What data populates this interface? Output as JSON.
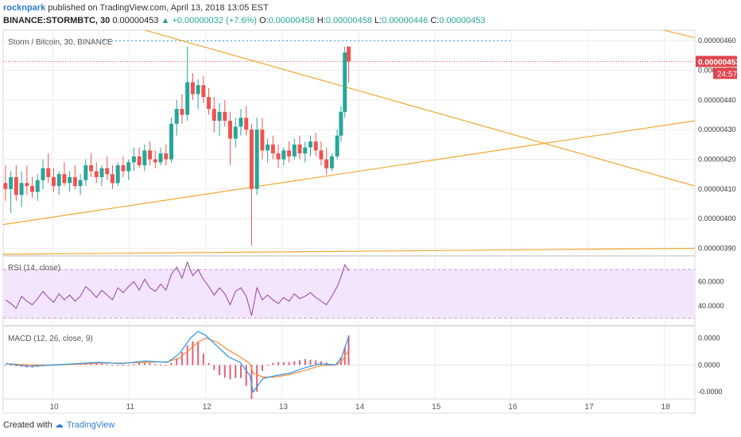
{
  "header": {
    "author": "rocknpark",
    "published": "published on TradingView.com, April 13, 2018 13:05 EST"
  },
  "ohlc": {
    "symbol": "BINANCE:STORMBTC, 30",
    "last": "0.00000453",
    "change": "▲ +0.00000032 (+7.6%)",
    "o_label": "O:",
    "o": "0.00000458",
    "h_label": "H:",
    "h": "0.00000458",
    "l_label": "L:",
    "l": "0.00000446",
    "c_label": "C:",
    "c": "0.00000453"
  },
  "price_panel": {
    "legend": "Storm / Bitcoin, 30, BINANCE",
    "price_ticks": [
      "0.00000460",
      "0.00000450",
      "0.00000440",
      "0.00000430",
      "0.00000420",
      "0.00000410",
      "0.00000400",
      "0.00000390"
    ],
    "last_price_label": "0.00000453",
    "countdown_label": "24:57"
  },
  "rsi_panel": {
    "legend": "RSI (14, close)",
    "ticks": [
      "60.0000",
      "40.0000"
    ]
  },
  "macd_panel": {
    "legend": "MACD (12, 26, close, 9)",
    "ticks": [
      "0.0000",
      "0.0000",
      "-0.0000"
    ]
  },
  "time_axis": [
    "10",
    "11",
    "12",
    "13",
    "14",
    "15",
    "16",
    "17",
    "18"
  ],
  "footer": {
    "created_with": "Created with",
    "brand": "TradingView"
  },
  "colors": {
    "up": "#26a69a",
    "down": "#ef5350",
    "trendline": "#f0a830",
    "rsi_line": "#9c3fa8",
    "rsi_band": "#f3e5fb",
    "macd_line": "#2196f3",
    "signal_line": "#ff8a30",
    "hist": "#e0607a",
    "price_label_bg": "#e0454d"
  },
  "chart_data": {
    "type": "candlestick",
    "price_range": [
      3.88e-06,
      4.63e-06
    ],
    "x_range": [
      9.35,
      18.4
    ],
    "candles": [
      [
        9.38,
        4.12e-06,
        4.18e-06,
        4.06e-06,
        4.1e-06
      ],
      [
        9.45,
        4.1e-06,
        4.16e-06,
        4.02e-06,
        4.14e-06
      ],
      [
        9.52,
        4.14e-06,
        4.18e-06,
        4.06e-06,
        4.08e-06
      ],
      [
        9.59,
        4.08e-06,
        4.16e-06,
        4.04e-06,
        4.12e-06
      ],
      [
        9.66,
        4.12e-06,
        4.18e-06,
        4.08e-06,
        4.11e-06
      ],
      [
        9.73,
        4.11e-06,
        4.14e-06,
        4.07e-06,
        4.09e-06
      ],
      [
        9.8,
        4.09e-06,
        4.15e-06,
        4.06e-06,
        4.13e-06
      ],
      [
        9.87,
        4.13e-06,
        4.2e-06,
        4.1e-06,
        4.17e-06
      ],
      [
        9.94,
        4.17e-06,
        4.22e-06,
        4.12e-06,
        4.14e-06
      ],
      [
        10.01,
        4.14e-06,
        4.17e-06,
        4.09e-06,
        4.11e-06
      ],
      [
        10.08,
        4.11e-06,
        4.16e-06,
        4.08e-06,
        4.15e-06
      ],
      [
        10.15,
        4.15e-06,
        4.19e-06,
        4.11e-06,
        4.12e-06
      ],
      [
        10.22,
        4.12e-06,
        4.16e-06,
        4.09e-06,
        4.14e-06
      ],
      [
        10.29,
        4.14e-06,
        4.18e-06,
        4.1e-06,
        4.11e-06
      ],
      [
        10.36,
        4.11e-06,
        4.15e-06,
        4.08e-06,
        4.13e-06
      ],
      [
        10.43,
        4.13e-06,
        4.2e-06,
        4.11e-06,
        4.18e-06
      ],
      [
        10.5,
        4.18e-06,
        4.22e-06,
        4.14e-06,
        4.16e-06
      ],
      [
        10.57,
        4.16e-06,
        4.19e-06,
        4.12e-06,
        4.14e-06
      ],
      [
        10.64,
        4.14e-06,
        4.18e-06,
        4.11e-06,
        4.17e-06
      ],
      [
        10.71,
        4.17e-06,
        4.21e-06,
        4.13e-06,
        4.15e-06
      ],
      [
        10.78,
        4.15e-06,
        4.18e-06,
        4.1e-06,
        4.12e-06
      ],
      [
        10.85,
        4.12e-06,
        4.19e-06,
        4.11e-06,
        4.18e-06
      ],
      [
        10.92,
        4.18e-06,
        4.21e-06,
        4.14e-06,
        4.16e-06
      ],
      [
        10.99,
        4.16e-06,
        4.2e-06,
        4.13e-06,
        4.19e-06
      ],
      [
        11.06,
        4.19e-06,
        4.24e-06,
        4.16e-06,
        4.21e-06
      ],
      [
        11.13,
        4.21e-06,
        4.24e-06,
        4.17e-06,
        4.18e-06
      ],
      [
        11.2,
        4.18e-06,
        4.25e-06,
        4.16e-06,
        4.23e-06
      ],
      [
        11.27,
        4.23e-06,
        4.26e-06,
        4.18e-06,
        4.2e-06
      ],
      [
        11.34,
        4.2e-06,
        4.23e-06,
        4.17e-06,
        4.19e-06
      ],
      [
        11.41,
        4.19e-06,
        4.24e-06,
        4.18e-06,
        4.22e-06
      ],
      [
        11.48,
        4.22e-06,
        4.25e-06,
        4.18e-06,
        4.2e-06
      ],
      [
        11.55,
        4.2e-06,
        4.34e-06,
        4.19e-06,
        4.32e-06
      ],
      [
        11.62,
        4.32e-06,
        4.4e-06,
        4.28e-06,
        4.37e-06
      ],
      [
        11.69,
        4.37e-06,
        4.42e-06,
        4.32e-06,
        4.35e-06
      ],
      [
        11.76,
        4.35e-06,
        4.58e-06,
        4.33e-06,
        4.46e-06
      ],
      [
        11.83,
        4.46e-06,
        4.49e-06,
        4.4e-06,
        4.42e-06
      ],
      [
        11.9,
        4.42e-06,
        4.47e-06,
        4.37e-06,
        4.45e-06
      ],
      [
        11.97,
        4.45e-06,
        4.48e-06,
        4.39e-06,
        4.41e-06
      ],
      [
        12.04,
        4.41e-06,
        4.44e-06,
        4.35e-06,
        4.37e-06
      ],
      [
        12.11,
        4.37e-06,
        4.41e-06,
        4.29e-06,
        4.33e-06
      ],
      [
        12.18,
        4.33e-06,
        4.39e-06,
        4.28e-06,
        4.36e-06
      ],
      [
        12.25,
        4.36e-06,
        4.4e-06,
        4.31e-06,
        4.33e-06
      ],
      [
        12.32,
        4.33e-06,
        4.36e-06,
        4.18e-06,
        4.27e-06
      ],
      [
        12.39,
        4.27e-06,
        4.34e-06,
        4.24e-06,
        4.31e-06
      ],
      [
        12.46,
        4.31e-06,
        4.37e-06,
        4.28e-06,
        4.34e-06
      ],
      [
        12.53,
        4.34e-06,
        4.38e-06,
        4.28e-06,
        4.3e-06
      ],
      [
        12.6,
        4.3e-06,
        4.32e-06,
        3.91e-06,
        4.1e-06
      ],
      [
        12.67,
        4.1e-06,
        4.34e-06,
        4.08e-06,
        4.3e-06
      ],
      [
        12.74,
        4.3e-06,
        4.34e-06,
        4.2e-06,
        4.23e-06
      ],
      [
        12.81,
        4.23e-06,
        4.27e-06,
        4.19e-06,
        4.25e-06
      ],
      [
        12.88,
        4.25e-06,
        4.28e-06,
        4.2e-06,
        4.22e-06
      ],
      [
        12.95,
        4.22e-06,
        4.25e-06,
        4.17e-06,
        4.2e-06
      ],
      [
        13.02,
        4.2e-06,
        4.24e-06,
        4.18e-06,
        4.23e-06
      ],
      [
        13.09,
        4.23e-06,
        4.26e-06,
        4.19e-06,
        4.21e-06
      ],
      [
        13.16,
        4.21e-06,
        4.27e-06,
        4.2e-06,
        4.25e-06
      ],
      [
        13.23,
        4.25e-06,
        4.28e-06,
        4.2e-06,
        4.22e-06
      ],
      [
        13.3,
        4.22e-06,
        4.26e-06,
        4.19e-06,
        4.24e-06
      ],
      [
        13.37,
        4.24e-06,
        4.28e-06,
        4.21e-06,
        4.26e-06
      ],
      [
        13.44,
        4.26e-06,
        4.29e-06,
        4.21e-06,
        4.23e-06
      ],
      [
        13.51,
        4.23e-06,
        4.26e-06,
        4.18e-06,
        4.2e-06
      ],
      [
        13.58,
        4.2e-06,
        4.24e-06,
        4.15e-06,
        4.17e-06
      ],
      [
        13.65,
        4.17e-06,
        4.22e-06,
        4.16e-06,
        4.21e-06
      ],
      [
        13.72,
        4.21e-06,
        4.3e-06,
        4.2e-06,
        4.28e-06
      ],
      [
        13.77,
        4.28e-06,
        4.38e-06,
        4.26e-06,
        4.36e-06
      ],
      [
        13.82,
        4.36e-06,
        4.58e-06,
        4.34e-06,
        4.56e-06
      ],
      [
        13.87,
        4.58e-06,
        4.58e-06,
        4.46e-06,
        4.53e-06
      ]
    ],
    "trendlines": [
      {
        "from": [
          9.5,
          4.76e-06
        ],
        "to": [
          18.4,
          4.11e-06
        ]
      },
      {
        "from": [
          9.35,
          3.98e-06
        ],
        "to": [
          18.4,
          4.33e-06
        ]
      },
      {
        "from": [
          17.6,
          4.66e-06
        ],
        "to": [
          18.4,
          4.61e-06
        ]
      },
      {
        "from": [
          9.35,
          3.88e-06
        ],
        "to": [
          18.4,
          3.9e-06
        ]
      }
    ],
    "resistance_level": 4.6e-06,
    "last_price": 4.53e-06,
    "rsi": {
      "range": [
        25,
        80
      ],
      "bands": [
        70,
        30
      ],
      "values": [
        [
          9.38,
          45
        ],
        [
          9.45,
          42
        ],
        [
          9.52,
          38
        ],
        [
          9.59,
          48
        ],
        [
          9.66,
          44
        ],
        [
          9.73,
          41
        ],
        [
          9.8,
          46
        ],
        [
          9.87,
          52
        ],
        [
          9.94,
          47
        ],
        [
          10.01,
          43
        ],
        [
          10.08,
          50
        ],
        [
          10.15,
          45
        ],
        [
          10.22,
          49
        ],
        [
          10.29,
          44
        ],
        [
          10.36,
          48
        ],
        [
          10.43,
          56
        ],
        [
          10.5,
          52
        ],
        [
          10.57,
          47
        ],
        [
          10.64,
          53
        ],
        [
          10.71,
          49
        ],
        [
          10.78,
          45
        ],
        [
          10.85,
          55
        ],
        [
          10.92,
          51
        ],
        [
          10.99,
          56
        ],
        [
          11.06,
          60
        ],
        [
          11.13,
          53
        ],
        [
          11.2,
          62
        ],
        [
          11.27,
          55
        ],
        [
          11.34,
          52
        ],
        [
          11.41,
          58
        ],
        [
          11.48,
          53
        ],
        [
          11.55,
          66
        ],
        [
          11.62,
          72
        ],
        [
          11.69,
          63
        ],
        [
          11.76,
          76
        ],
        [
          11.83,
          65
        ],
        [
          11.9,
          70
        ],
        [
          11.97,
          62
        ],
        [
          12.04,
          56
        ],
        [
          12.11,
          49
        ],
        [
          12.18,
          55
        ],
        [
          12.25,
          50
        ],
        [
          12.32,
          41
        ],
        [
          12.39,
          52
        ],
        [
          12.46,
          55
        ],
        [
          12.53,
          48
        ],
        [
          12.6,
          32
        ],
        [
          12.67,
          55
        ],
        [
          12.74,
          45
        ],
        [
          12.81,
          49
        ],
        [
          12.88,
          45
        ],
        [
          12.95,
          42
        ],
        [
          13.02,
          47
        ],
        [
          13.09,
          44
        ],
        [
          13.16,
          50
        ],
        [
          13.23,
          46
        ],
        [
          13.3,
          48
        ],
        [
          13.37,
          51
        ],
        [
          13.44,
          47
        ],
        [
          13.51,
          44
        ],
        [
          13.58,
          41
        ],
        [
          13.65,
          48
        ],
        [
          13.72,
          56
        ],
        [
          13.77,
          64
        ],
        [
          13.82,
          74
        ],
        [
          13.87,
          69
        ]
      ]
    },
    "macd": {
      "range": [
        -1.2e-08,
        1.4e-08
      ],
      "macd": [
        [
          9.38,
          5e-10
        ],
        [
          9.7,
          -5e-10
        ],
        [
          10.0,
          0.0
        ],
        [
          10.3,
          5e-10
        ],
        [
          10.6,
          1e-09
        ],
        [
          10.9,
          5e-10
        ],
        [
          11.2,
          1.5e-09
        ],
        [
          11.5,
          1e-09
        ],
        [
          11.65,
          4e-09
        ],
        [
          11.8,
          1e-08
        ],
        [
          11.9,
          1.25e-08
        ],
        [
          12.0,
          1.1e-08
        ],
        [
          12.15,
          7e-09
        ],
        [
          12.3,
          3e-09
        ],
        [
          12.45,
          1e-09
        ],
        [
          12.58,
          -4e-09
        ],
        [
          12.62,
          -1e-08
        ],
        [
          12.75,
          -5e-09
        ],
        [
          12.9,
          -4e-09
        ],
        [
          13.1,
          -3e-09
        ],
        [
          13.3,
          -1e-09
        ],
        [
          13.5,
          5e-10
        ],
        [
          13.7,
          0.0
        ],
        [
          13.78,
          3e-09
        ],
        [
          13.87,
          1.05e-08
        ]
      ],
      "signal": [
        [
          9.38,
          5e-10
        ],
        [
          9.7,
          0.0
        ],
        [
          10.0,
          0.0
        ],
        [
          10.3,
          3e-10
        ],
        [
          10.6,
          7e-10
        ],
        [
          10.9,
          7e-10
        ],
        [
          11.2,
          1e-09
        ],
        [
          11.5,
          1.2e-09
        ],
        [
          11.65,
          2.5e-09
        ],
        [
          11.8,
          6e-09
        ],
        [
          11.9,
          8.5e-09
        ],
        [
          12.0,
          1e-08
        ],
        [
          12.15,
          8.5e-09
        ],
        [
          12.3,
          5.5e-09
        ],
        [
          12.45,
          3e-09
        ],
        [
          12.58,
          5e-10
        ],
        [
          12.62,
          -3e-09
        ],
        [
          12.75,
          -4.5e-09
        ],
        [
          12.9,
          -4.5e-09
        ],
        [
          13.1,
          -3.5e-09
        ],
        [
          13.3,
          -2e-09
        ],
        [
          13.5,
          -2e-10
        ],
        [
          13.7,
          0.0
        ],
        [
          13.78,
          1.5e-09
        ],
        [
          13.87,
          5.5e-09
        ]
      ]
    }
  }
}
